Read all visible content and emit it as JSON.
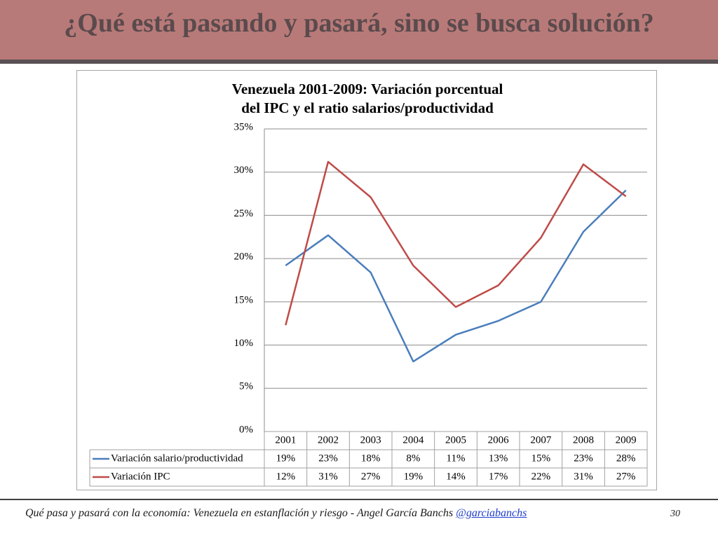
{
  "slide": {
    "title": "¿Qué está pasando y pasará, sino se busca solución?"
  },
  "footer": {
    "text": "Qué pasa y pasará con la economía: Venezuela en estanflación y riesgo - Angel García Banchs ",
    "link": "@garciabanchs",
    "page": "30"
  },
  "colors": {
    "header_bg": "#b87a78",
    "header_line": "#5a5155",
    "series_blue": "#4a7ebb",
    "series_red": "#be4b48"
  },
  "chart_data": {
    "type": "line",
    "title_line1": "Venezuela 2001-2009: Variación porcentual",
    "title_line2": "del IPC y el ratio salarios/productividad",
    "x": [
      "2001",
      "2002",
      "2003",
      "2004",
      "2005",
      "2006",
      "2007",
      "2008",
      "2009"
    ],
    "yticks": [
      "0%",
      "5%",
      "10%",
      "15%",
      "20%",
      "25%",
      "30%",
      "35%"
    ],
    "ylim": [
      0,
      35
    ],
    "grid": true,
    "legend": "data-table-below",
    "series": [
      {
        "name": "Variación salario/productividad",
        "color": "#4a7ebb",
        "values": [
          19.2,
          22.7,
          18.4,
          8.1,
          11.2,
          12.8,
          15.0,
          23.1,
          27.9
        ],
        "labels": [
          "19%",
          "23%",
          "18%",
          "8%",
          "11%",
          "13%",
          "15%",
          "23%",
          "28%"
        ]
      },
      {
        "name": "Variación IPC",
        "color": "#be4b48",
        "values": [
          12.3,
          31.2,
          27.1,
          19.2,
          14.4,
          16.9,
          22.4,
          30.9,
          27.2
        ],
        "labels": [
          "12%",
          "31%",
          "27%",
          "19%",
          "14%",
          "17%",
          "22%",
          "31%",
          "27%"
        ]
      }
    ]
  }
}
